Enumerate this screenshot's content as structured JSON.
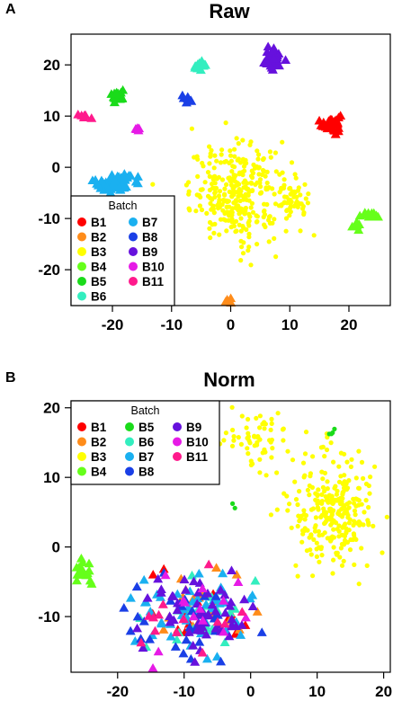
{
  "colors": {
    "B1": "#ff0000",
    "B2": "#ff8c1a",
    "B3": "#ffff00",
    "B4": "#66ff1a",
    "B5": "#1adb1a",
    "B6": "#33eebf",
    "B7": "#1ab0f0",
    "B8": "#1a3fe6",
    "B9": "#6611dd",
    "B10": "#e61ae6",
    "B11": "#ff1a8c"
  },
  "panels": [
    {
      "letter": "A",
      "title": "Raw",
      "legend_title": "Batch",
      "legend_layout": "2-col",
      "legend_items": [
        "B1",
        "B2",
        "B3",
        "B4",
        "B5",
        "B6",
        "B7",
        "B8",
        "B9",
        "B10",
        "B11"
      ]
    },
    {
      "letter": "B",
      "title": "Norm",
      "legend_title": "Batch",
      "legend_layout": "3-col",
      "legend_items": [
        "B1",
        "B2",
        "B3",
        "B4",
        "B5",
        "B6",
        "B7",
        "B8",
        "B9",
        "B10",
        "B11"
      ]
    }
  ],
  "chart_data": [
    {
      "type": "scatter",
      "title": "Raw",
      "xlim": [
        -27,
        27
      ],
      "ylim": [
        -27,
        26
      ],
      "xticks": [
        -20,
        -10,
        0,
        10,
        20
      ],
      "yticks": [
        -20,
        -10,
        0,
        10,
        20
      ],
      "legend_title": "Batch",
      "legend_position": "bottom-left",
      "grid": false,
      "clusters": [
        {
          "batch": "B1",
          "shape": "triangle",
          "cx": 17,
          "cy": 8.5,
          "sx": 0.8,
          "sy": 1.0,
          "n": 30
        },
        {
          "batch": "B2",
          "shape": "triangle",
          "cx": -0.5,
          "cy": -26,
          "sx": 0.3,
          "sy": 0.3,
          "n": 4
        },
        {
          "batch": "B3",
          "shape": "circle",
          "cx": 1.5,
          "cy": -5,
          "sx": 4.2,
          "sy": 4.6,
          "n": 320
        },
        {
          "batch": "B3",
          "shape": "circle",
          "cx": 10.5,
          "cy": -6.5,
          "sx": 1.2,
          "sy": 2.0,
          "n": 40
        },
        {
          "batch": "B4",
          "shape": "triangle",
          "cx": 23.5,
          "cy": -9.5,
          "sx": 1.0,
          "sy": 0.4,
          "n": 14
        },
        {
          "batch": "B4",
          "shape": "triangle",
          "cx": 21.3,
          "cy": -11.3,
          "sx": 0.5,
          "sy": 0.5,
          "n": 8
        },
        {
          "batch": "B5",
          "shape": "triangle",
          "cx": -19,
          "cy": 14,
          "sx": 0.6,
          "sy": 0.6,
          "n": 16
        },
        {
          "batch": "B6",
          "shape": "triangle",
          "cx": -5,
          "cy": 19.8,
          "sx": 0.6,
          "sy": 0.4,
          "n": 14
        },
        {
          "batch": "B7",
          "shape": "triangle",
          "cx": -20,
          "cy": -3,
          "sx": 1.6,
          "sy": 1.0,
          "n": 70
        },
        {
          "batch": "B8",
          "shape": "triangle",
          "cx": -7,
          "cy": 13.5,
          "sx": 0.4,
          "sy": 0.4,
          "n": 8
        },
        {
          "batch": "B9",
          "shape": "triangle",
          "cx": 7,
          "cy": 21.5,
          "sx": 1.0,
          "sy": 1.0,
          "n": 36
        },
        {
          "batch": "B10",
          "shape": "triangle",
          "cx": -16,
          "cy": 7.5,
          "sx": 0.3,
          "sy": 0.3,
          "n": 5
        },
        {
          "batch": "B11",
          "shape": "triangle",
          "cx": -25,
          "cy": 10.2,
          "sx": 0.5,
          "sy": 0.3,
          "n": 6
        }
      ]
    },
    {
      "type": "scatter",
      "title": "Norm",
      "xlim": [
        -27,
        21
      ],
      "ylim": [
        -18,
        21
      ],
      "xticks": [
        -20,
        -10,
        0,
        10,
        20
      ],
      "yticks": [
        -10,
        0,
        10,
        20
      ],
      "legend_title": "Batch",
      "legend_position": "top-left",
      "grid": false,
      "clusters": [
        {
          "batch": "B3",
          "shape": "circle",
          "cx": 12.5,
          "cy": 5.5,
          "sx": 3.6,
          "sy": 4.2,
          "n": 280
        },
        {
          "batch": "B3",
          "shape": "circle",
          "cx": 1.5,
          "cy": 15.5,
          "sx": 2.2,
          "sy": 1.8,
          "n": 60
        },
        {
          "batch": "B5",
          "shape": "circle",
          "cx": 12.5,
          "cy": 16.3,
          "sx": 0.4,
          "sy": 0.3,
          "n": 4
        },
        {
          "batch": "B5",
          "shape": "circle",
          "cx": -2.5,
          "cy": 6,
          "sx": 0.2,
          "sy": 0.2,
          "n": 2
        },
        {
          "batch": "B4",
          "shape": "triangle",
          "cx": -25,
          "cy": -4,
          "sx": 0.7,
          "sy": 1.0,
          "n": 18
        },
        {
          "batch": "B1",
          "shape": "triangle",
          "cx": -8,
          "cy": -10,
          "sx": 4.5,
          "sy": 3.0,
          "n": 18
        },
        {
          "batch": "B2",
          "shape": "triangle",
          "cx": -7,
          "cy": -8,
          "sx": 4.0,
          "sy": 3.0,
          "n": 22
        },
        {
          "batch": "B6",
          "shape": "triangle",
          "cx": -8,
          "cy": -10,
          "sx": 4.5,
          "sy": 3.0,
          "n": 22
        },
        {
          "batch": "B7",
          "shape": "triangle",
          "cx": -8,
          "cy": -10,
          "sx": 4.8,
          "sy": 3.2,
          "n": 45
        },
        {
          "batch": "B8",
          "shape": "triangle",
          "cx": -9,
          "cy": -10,
          "sx": 4.0,
          "sy": 3.0,
          "n": 30
        },
        {
          "batch": "B9",
          "shape": "triangle",
          "cx": -8,
          "cy": -10,
          "sx": 4.0,
          "sy": 2.8,
          "n": 55
        },
        {
          "batch": "B10",
          "shape": "triangle",
          "cx": -9,
          "cy": -9,
          "sx": 4.5,
          "sy": 3.4,
          "n": 14
        },
        {
          "batch": "B11",
          "shape": "triangle",
          "cx": -8,
          "cy": -11,
          "sx": 4.5,
          "sy": 3.5,
          "n": 14
        }
      ]
    }
  ]
}
